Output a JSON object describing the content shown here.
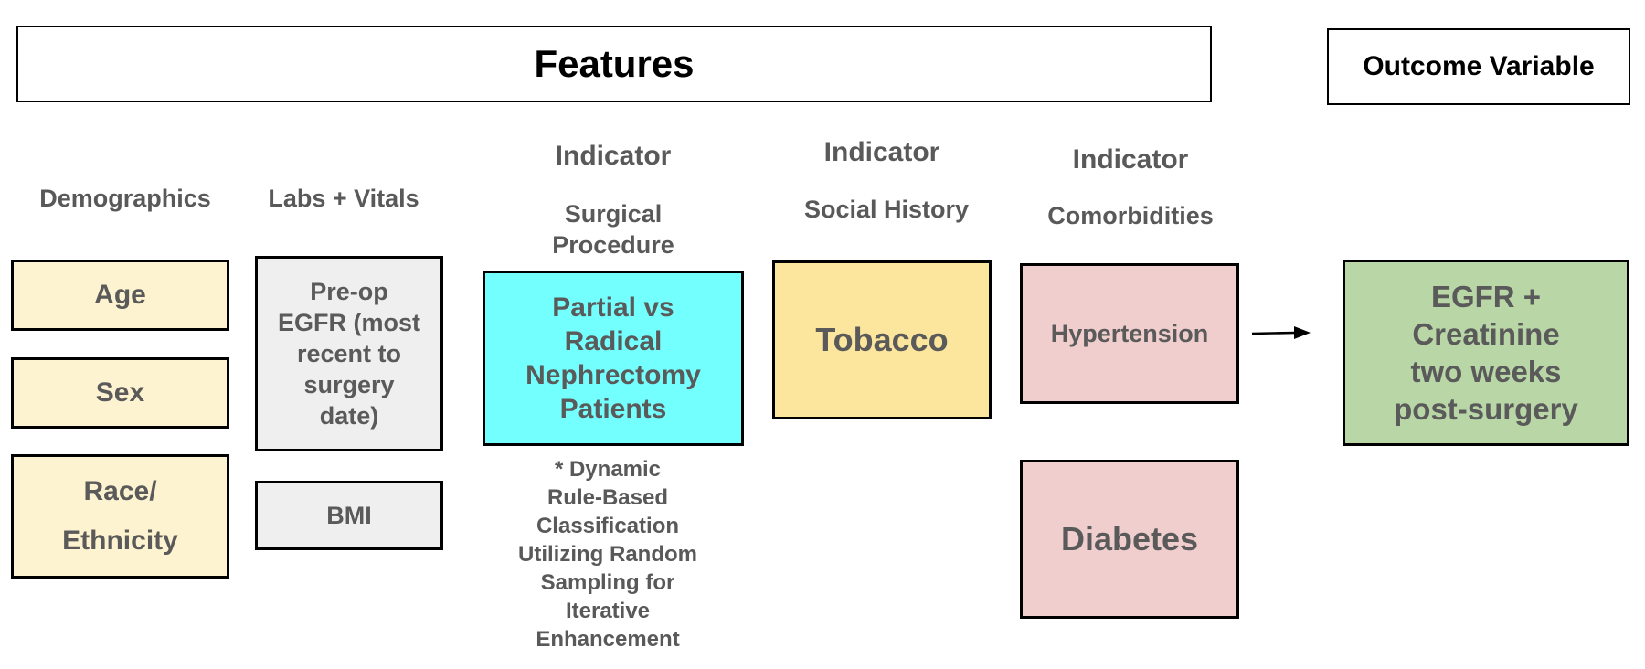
{
  "headers": {
    "features": "Features",
    "outcome": "Outcome Variable"
  },
  "columns": {
    "demographics": {
      "title": "Demographics",
      "items": [
        "Age",
        "Sex",
        "Race/\nEthnicity"
      ]
    },
    "labs_vitals": {
      "title": "Labs + Vitals",
      "items": [
        "Pre-op\nEGFR (most\nrecent to\nsurgery\ndate)",
        "BMI"
      ]
    },
    "surgical": {
      "indicator": "Indicator",
      "title": "Surgical\nProcedure",
      "item": "Partial vs\nRadical\nNephrectomy\nPatients",
      "note": "* Dynamic\nRule-Based\nClassification\nUtilizing Random\nSampling for\nIterative\nEnhancement"
    },
    "social": {
      "indicator": "Indicator",
      "title": "Social History",
      "item": "Tobacco"
    },
    "comorbidities": {
      "indicator": "Indicator",
      "title": "Comorbidities",
      "items": [
        "Hypertension",
        "Diabetes"
      ]
    }
  },
  "outcome_box": "EGFR +\nCreatinine\ntwo weeks\npost-surgery",
  "colors": {
    "demographics_fill": "#fdf3d0",
    "labs_fill": "#efefef",
    "surgical_fill": "#74ffff",
    "tobacco_fill": "#fce59c",
    "comorbidity_fill": "#f0cece",
    "outcome_fill": "#b9d6a7",
    "text": "#5a5a5a",
    "border": "#000000"
  }
}
